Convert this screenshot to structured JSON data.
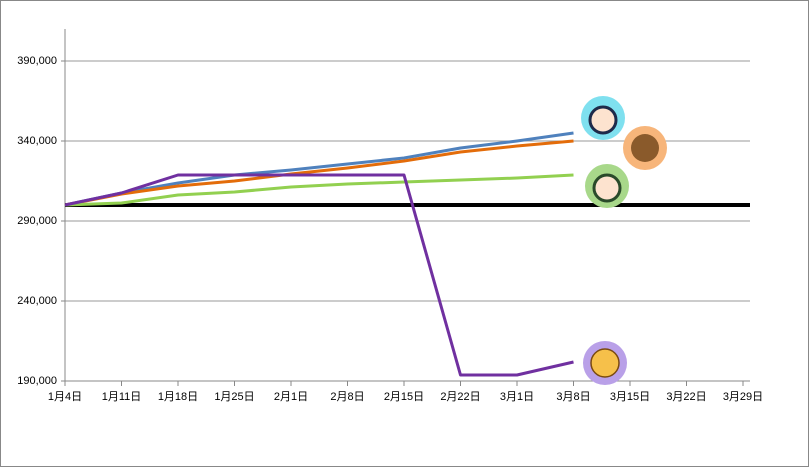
{
  "chart_data": {
    "type": "line",
    "categories": [
      "1月4日",
      "1月11日",
      "1月18日",
      "1月25日",
      "2月1日",
      "2月8日",
      "2月15日",
      "2月22日",
      "3月1日",
      "3月8日",
      "3月15日",
      "3月22日",
      "3月29日"
    ],
    "series": [
      {
        "color": "#4f81bd",
        "values": [
          300000,
          307500,
          313750,
          318750,
          321875,
          325625,
          329375,
          335625,
          340000,
          345000,
          null,
          null,
          null
        ]
      },
      {
        "color": "#e36c0a",
        "values": [
          300000,
          306875,
          311875,
          315000,
          319375,
          323125,
          327500,
          333125,
          336875,
          340000,
          null,
          null,
          null
        ]
      },
      {
        "color": "#92d050",
        "values": [
          300000,
          301250,
          306250,
          308125,
          311250,
          313125,
          314375,
          315625,
          316875,
          318750,
          null,
          null,
          null
        ]
      },
      {
        "color": "#7030a0",
        "values": [
          300000,
          307500,
          318750,
          318750,
          318750,
          318750,
          318750,
          193750,
          193750,
          201875,
          null,
          null,
          null
        ]
      }
    ],
    "reference_line": 300000,
    "ylim": [
      190000,
      410000
    ],
    "yticks": [
      {
        "value": 190000,
        "label": "190,000"
      },
      {
        "value": 240000,
        "label": "240,000"
      },
      {
        "value": 290000,
        "label": "290,000"
      },
      {
        "value": 340000,
        "label": "340,000"
      },
      {
        "value": 390000,
        "label": "390,000"
      }
    ],
    "grid": true
  }
}
